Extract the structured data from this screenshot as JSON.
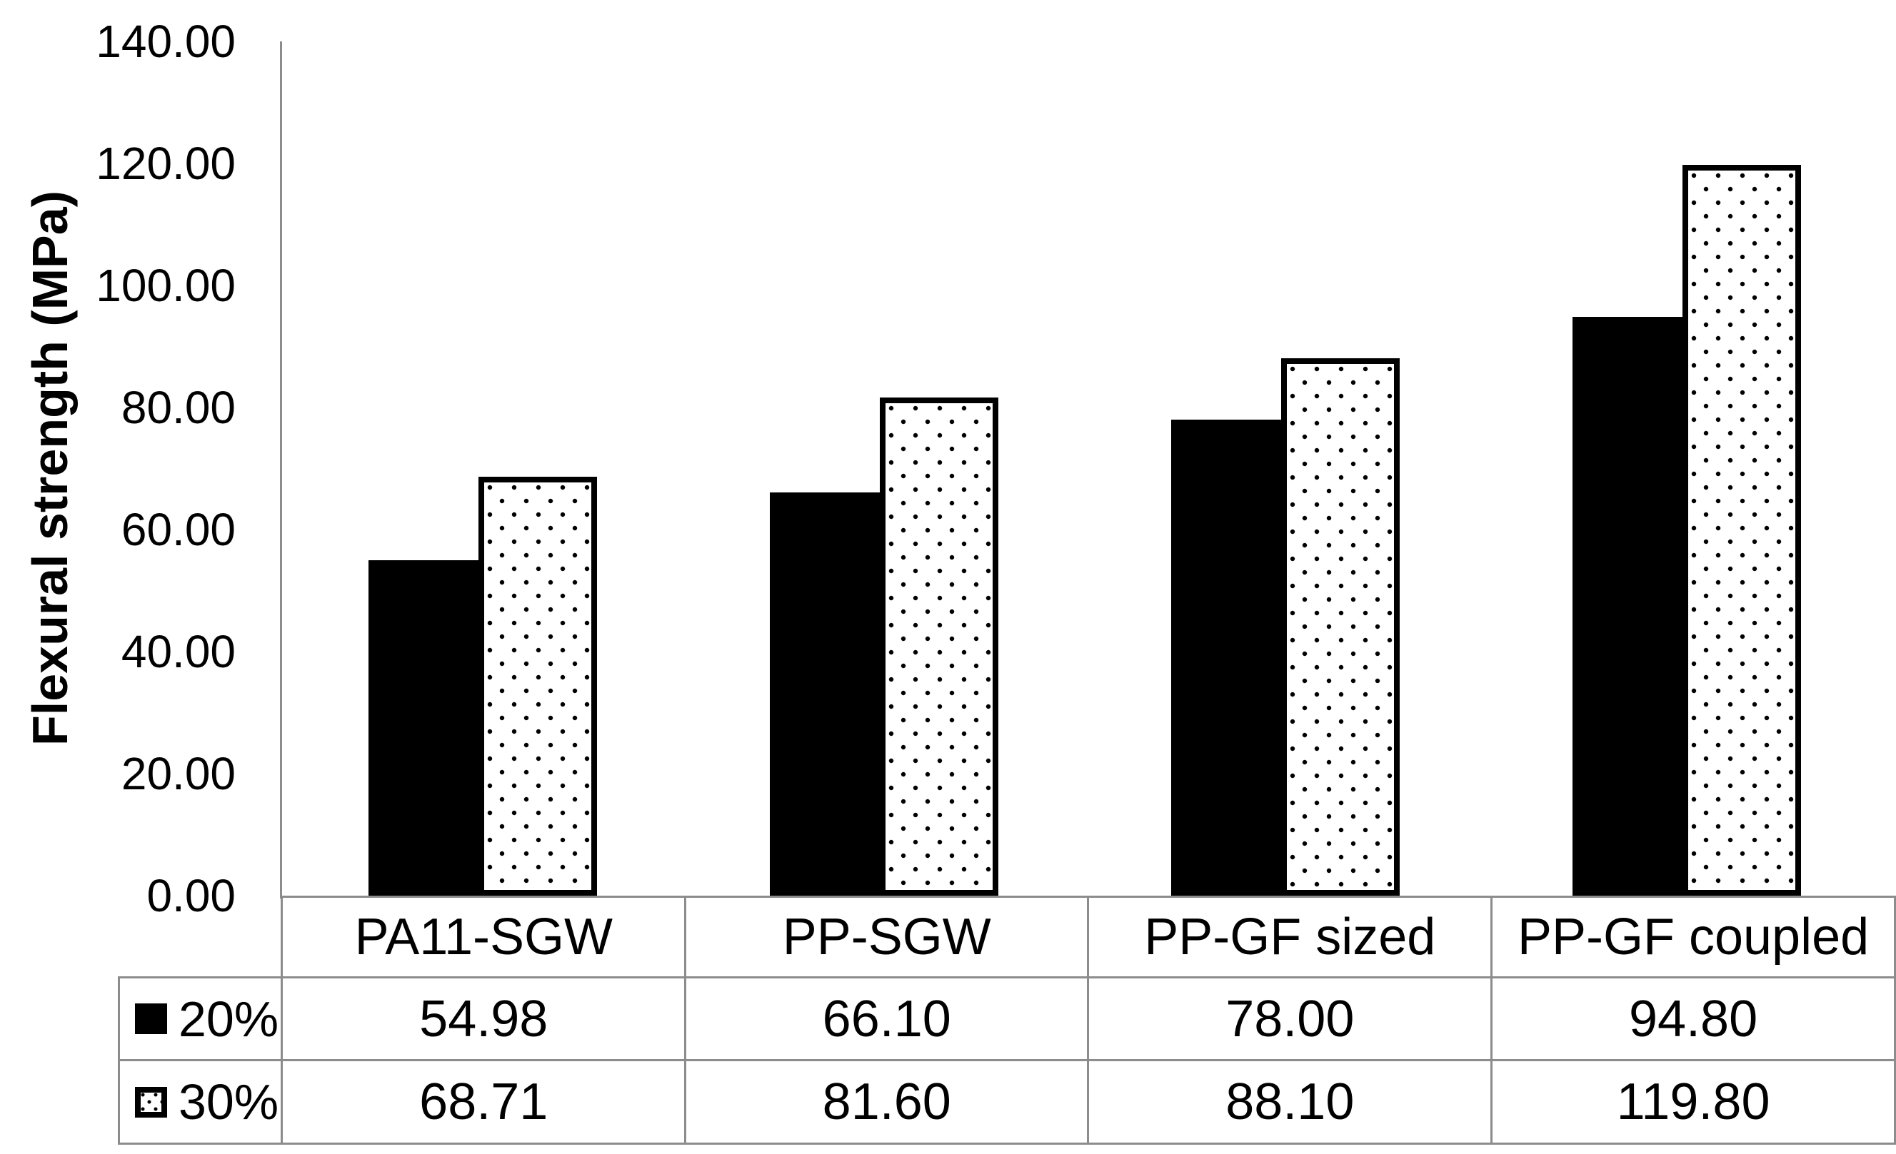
{
  "chart_data": {
    "type": "bar",
    "categories": [
      "PA11-SGW",
      "PP-SGW",
      "PP-GF sized",
      "PP-GF coupled"
    ],
    "series": [
      {
        "name": "20%",
        "values": [
          54.98,
          66.1,
          78.0,
          94.8
        ],
        "values_display": [
          "54.98",
          "66.10",
          "78.00",
          "94.80"
        ],
        "style": "solid-black"
      },
      {
        "name": "30%",
        "values": [
          68.71,
          81.6,
          88.1,
          119.8
        ],
        "values_display": [
          "68.71",
          "81.60",
          "88.10",
          "119.80"
        ],
        "style": "white-with-black-dots"
      }
    ],
    "title": "",
    "xlabel": "",
    "ylabel": "Flexural strength (MPa)",
    "ylim": [
      0,
      140
    ],
    "ytick_step": 20,
    "ytick_labels": [
      "0.00",
      "20.00",
      "40.00",
      "60.00",
      "80.00",
      "100.00",
      "120.00",
      "140.00"
    ],
    "grid": false,
    "legend_position": "data-table-left-column",
    "data_table_shown": true
  },
  "colors": {
    "bar_fill": "#000000",
    "dotted_bar_background": "#FFFFFF",
    "axis_and_table_lines": "#8C8C8C",
    "text": "#000000",
    "background": "#FFFFFF"
  }
}
